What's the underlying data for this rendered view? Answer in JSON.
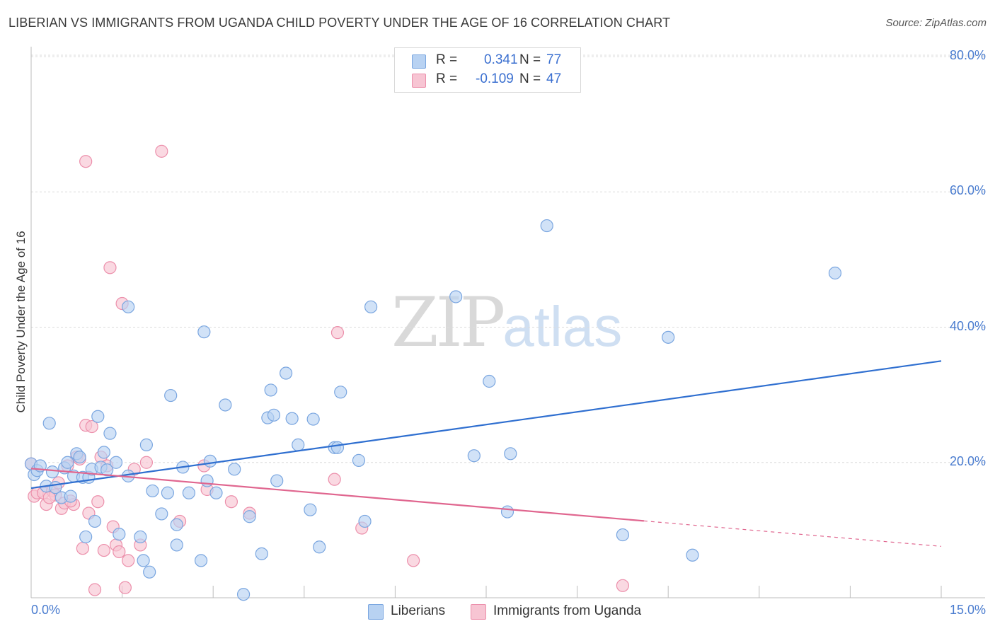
{
  "header": {
    "title": "LIBERIAN VS IMMIGRANTS FROM UGANDA CHILD POVERTY UNDER THE AGE OF 16 CORRELATION CHART",
    "source": "Source: ZipAtlas.com"
  },
  "watermark": {
    "zip": "ZIP",
    "atlas": "atlas"
  },
  "legend_stats": {
    "liberians": {
      "r_label": "R =",
      "r_value": "0.341",
      "n_label": "N =",
      "n_value": "77"
    },
    "uganda": {
      "r_label": "R =",
      "r_value": "-0.109",
      "n_label": "N =",
      "n_value": "47"
    }
  },
  "colors": {
    "liberians_fill": "#b8d2f2",
    "liberians_stroke": "#7aa6e0",
    "liberians_line": "#2f6fd0",
    "uganda_fill": "#f7c5d3",
    "uganda_stroke": "#ec8fab",
    "uganda_line": "#e0668f",
    "tick_text": "#4a7ccf"
  },
  "chart_data": {
    "type": "scatter",
    "title": "LIBERIAN VS IMMIGRANTS FROM UGANDA CHILD POVERTY UNDER THE AGE OF 16 CORRELATION CHART",
    "xlabel": "",
    "ylabel": "Child Poverty Under the Age of 16",
    "xlim": [
      0,
      15
    ],
    "ylim": [
      0,
      80
    ],
    "x_tick_labels": [
      "0.0%",
      "15.0%"
    ],
    "y_ticks": [
      20,
      40,
      60,
      80
    ],
    "y_tick_labels": [
      "20.0%",
      "40.0%",
      "60.0%",
      "80.0%"
    ],
    "grid": true,
    "legend": [
      "Liberians",
      "Immigrants from Uganda"
    ],
    "series": [
      {
        "name": "Liberians",
        "r": 0.341,
        "n": 77,
        "trend": {
          "x": [
            0,
            15
          ],
          "y": [
            16.2,
            35.0
          ],
          "dashed_from": null
        },
        "points": [
          [
            0.0,
            19.8
          ],
          [
            0.05,
            18.2
          ],
          [
            0.1,
            18.8
          ],
          [
            0.15,
            19.5
          ],
          [
            0.25,
            16.5
          ],
          [
            0.3,
            25.8
          ],
          [
            0.35,
            18.6
          ],
          [
            0.4,
            16.3
          ],
          [
            0.5,
            14.8
          ],
          [
            0.55,
            19.2
          ],
          [
            0.6,
            20.0
          ],
          [
            0.65,
            15.0
          ],
          [
            0.7,
            18.0
          ],
          [
            0.75,
            21.3
          ],
          [
            0.8,
            20.8
          ],
          [
            0.85,
            17.8
          ],
          [
            0.9,
            9.0
          ],
          [
            0.95,
            17.8
          ],
          [
            1.0,
            19.0
          ],
          [
            1.05,
            11.3
          ],
          [
            1.1,
            26.8
          ],
          [
            1.15,
            19.3
          ],
          [
            1.2,
            21.5
          ],
          [
            1.25,
            18.9
          ],
          [
            1.3,
            24.3
          ],
          [
            1.4,
            20.0
          ],
          [
            1.45,
            9.4
          ],
          [
            1.6,
            18.0
          ],
          [
            1.6,
            43.0
          ],
          [
            1.8,
            9.0
          ],
          [
            1.85,
            5.5
          ],
          [
            1.9,
            22.6
          ],
          [
            1.95,
            3.8
          ],
          [
            2.0,
            15.8
          ],
          [
            2.15,
            12.4
          ],
          [
            2.25,
            15.5
          ],
          [
            2.3,
            29.9
          ],
          [
            2.4,
            10.8
          ],
          [
            2.4,
            7.8
          ],
          [
            2.5,
            19.3
          ],
          [
            2.6,
            15.5
          ],
          [
            2.8,
            5.5
          ],
          [
            2.85,
            39.3
          ],
          [
            2.9,
            17.3
          ],
          [
            2.95,
            20.2
          ],
          [
            3.05,
            15.5
          ],
          [
            3.2,
            28.5
          ],
          [
            3.35,
            19.0
          ],
          [
            3.5,
            0.5
          ],
          [
            3.6,
            12.0
          ],
          [
            3.8,
            6.5
          ],
          [
            3.9,
            26.6
          ],
          [
            3.95,
            30.7
          ],
          [
            4.0,
            27.0
          ],
          [
            4.05,
            17.3
          ],
          [
            4.2,
            33.2
          ],
          [
            4.3,
            26.5
          ],
          [
            4.4,
            22.6
          ],
          [
            4.6,
            13.0
          ],
          [
            4.65,
            26.4
          ],
          [
            4.75,
            7.5
          ],
          [
            5.0,
            22.2
          ],
          [
            5.05,
            22.2
          ],
          [
            5.1,
            30.4
          ],
          [
            5.4,
            20.3
          ],
          [
            5.5,
            11.3
          ],
          [
            5.6,
            43.0
          ],
          [
            7.0,
            44.5
          ],
          [
            7.3,
            21.0
          ],
          [
            7.55,
            32.0
          ],
          [
            7.85,
            12.7
          ],
          [
            7.9,
            21.3
          ],
          [
            8.5,
            55.0
          ],
          [
            9.75,
            9.3
          ],
          [
            10.5,
            38.5
          ],
          [
            10.9,
            6.3
          ],
          [
            13.25,
            48.0
          ]
        ]
      },
      {
        "name": "Immigrants from Uganda",
        "r": -0.109,
        "n": 47,
        "trend": {
          "x": [
            0,
            15
          ],
          "y": [
            19.1,
            7.6
          ],
          "dashed_from": 10.1
        },
        "points": [
          [
            0.0,
            19.8
          ],
          [
            0.05,
            15.0
          ],
          [
            0.1,
            15.5
          ],
          [
            0.2,
            15.5
          ],
          [
            0.25,
            13.8
          ],
          [
            0.35,
            15.8
          ],
          [
            0.4,
            15.2
          ],
          [
            0.45,
            17.0
          ],
          [
            0.5,
            13.2
          ],
          [
            0.55,
            14.0
          ],
          [
            0.6,
            19.5
          ],
          [
            0.7,
            13.8
          ],
          [
            0.75,
            20.8
          ],
          [
            0.8,
            20.5
          ],
          [
            0.85,
            7.3
          ],
          [
            0.9,
            64.5
          ],
          [
            0.9,
            25.5
          ],
          [
            0.95,
            12.5
          ],
          [
            1.0,
            25.3
          ],
          [
            1.05,
            1.2
          ],
          [
            1.1,
            14.2
          ],
          [
            1.15,
            20.8
          ],
          [
            1.2,
            7.0
          ],
          [
            1.25,
            19.5
          ],
          [
            1.3,
            48.8
          ],
          [
            1.35,
            10.5
          ],
          [
            1.4,
            7.8
          ],
          [
            1.45,
            6.8
          ],
          [
            1.5,
            43.5
          ],
          [
            1.55,
            1.5
          ],
          [
            1.6,
            5.5
          ],
          [
            1.7,
            19.0
          ],
          [
            1.8,
            7.8
          ],
          [
            1.9,
            20.0
          ],
          [
            2.15,
            66.0
          ],
          [
            2.45,
            11.3
          ],
          [
            2.85,
            19.5
          ],
          [
            2.9,
            16.0
          ],
          [
            3.3,
            14.2
          ],
          [
            3.6,
            12.5
          ],
          [
            5.0,
            17.5
          ],
          [
            5.05,
            39.2
          ],
          [
            5.45,
            10.3
          ],
          [
            6.3,
            5.5
          ],
          [
            9.75,
            1.8
          ],
          [
            0.65,
            14.3
          ],
          [
            0.3,
            14.8
          ]
        ]
      }
    ]
  },
  "bottom_legend": {
    "liberians": "Liberians",
    "uganda": "Immigrants from Uganda"
  }
}
